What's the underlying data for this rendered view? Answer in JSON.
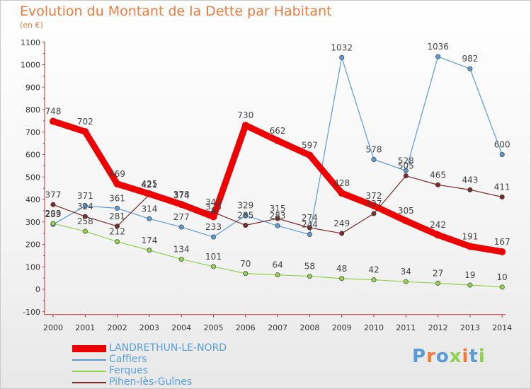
{
  "title": "Evolution du Montant de la Dette par Habitant",
  "unit": "(en €)",
  "logo": "Proxiti",
  "chart_data": {
    "type": "line",
    "categories": [
      "2000",
      "2001",
      "2002",
      "2003",
      "2004",
      "2005",
      "2006",
      "2007",
      "2008",
      "2009",
      "2010",
      "2011",
      "2012",
      "2013",
      "2014"
    ],
    "ylim": [
      -100,
      1100
    ],
    "yticks": [
      -100,
      0,
      100,
      200,
      300,
      400,
      500,
      600,
      700,
      800,
      900,
      1000,
      1100
    ],
    "grid": false,
    "legend_position": "bottom-left",
    "series": [
      {
        "name": "LANDRETHUN-LE-NORD",
        "color": "#ee0000",
        "values": [
          748,
          702,
          469,
          425,
          378,
          323,
          730,
          662,
          597,
          428,
          372,
          305,
          242,
          191,
          167
        ]
      },
      {
        "name": "Caffiers",
        "color": "#5b9bd5",
        "values": [
          289,
          371,
          361,
          314,
          277,
          233,
          329,
          283,
          244,
          1032,
          578,
          528,
          1036,
          982,
          600
        ]
      },
      {
        "name": "Ferques",
        "color": "#92d050",
        "values": [
          293,
          258,
          212,
          174,
          134,
          101,
          70,
          64,
          58,
          48,
          42,
          34,
          27,
          19,
          10
        ]
      },
      {
        "name": "Pihen-lès-Guînes",
        "color": "#7b2c2c",
        "values": [
          377,
          324,
          281,
          421,
          374,
          343,
          285,
          315,
          274,
          249,
          337,
          505,
          465,
          443,
          411
        ]
      }
    ]
  }
}
